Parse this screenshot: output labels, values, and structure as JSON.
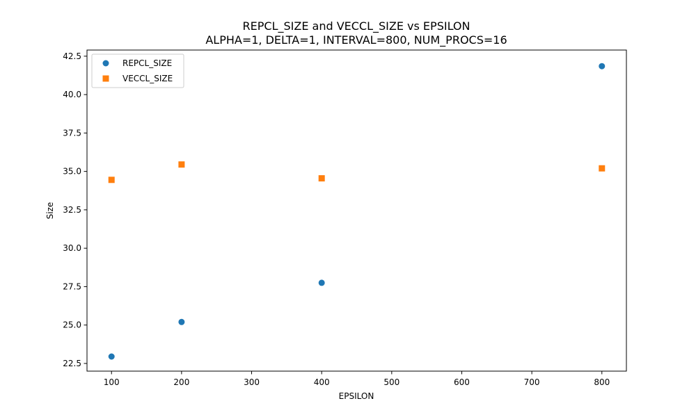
{
  "chart_data": {
    "type": "scatter",
    "title": "REPCL_SIZE and VECCL_SIZE vs EPSILON",
    "subtitle": "ALPHA=1, DELTA=1, INTERVAL=800, NUM_PROCS=16",
    "xlabel": "EPSILON",
    "ylabel": "Size",
    "xlim": [
      65,
      835
    ],
    "ylim": [
      22.0,
      42.9
    ],
    "xticks": [
      100,
      200,
      300,
      400,
      500,
      600,
      700,
      800
    ],
    "yticks": [
      22.5,
      25.0,
      27.5,
      30.0,
      32.5,
      35.0,
      37.5,
      40.0,
      42.5
    ],
    "ytick_labels": [
      "22.5",
      "25.0",
      "27.5",
      "30.0",
      "32.5",
      "35.0",
      "37.5",
      "40.0",
      "42.5"
    ],
    "grid": false,
    "legend_position": "upper-left",
    "series": [
      {
        "name": "REPCL_SIZE",
        "marker": "circle",
        "color": "#1f77b4",
        "x": [
          100,
          200,
          400,
          800
        ],
        "y": [
          22.95,
          25.2,
          27.75,
          41.85
        ]
      },
      {
        "name": "VECCL_SIZE",
        "marker": "square",
        "color": "#ff7f0e",
        "x": [
          100,
          200,
          400,
          800
        ],
        "y": [
          34.45,
          35.45,
          34.55,
          35.2
        ]
      }
    ]
  }
}
